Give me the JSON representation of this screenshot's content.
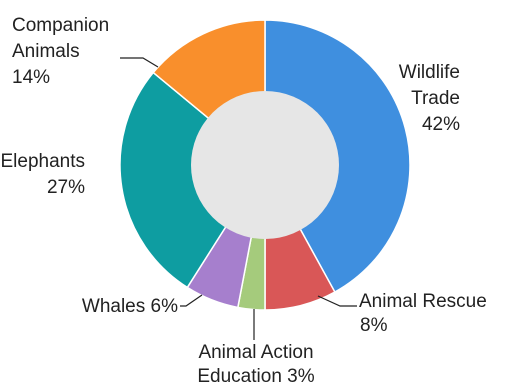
{
  "chart_data": {
    "type": "pie",
    "style": "donut",
    "title": "",
    "slices": [
      {
        "label_lines": [
          "Wildlife",
          "Trade"
        ],
        "value_text": "42%",
        "value": 42,
        "color": "#3f8fdf"
      },
      {
        "label_lines": [
          "Animal Rescue"
        ],
        "value_text": "8%",
        "value": 8,
        "color": "#d95757"
      },
      {
        "label_lines": [
          "Animal Action",
          "Education"
        ],
        "value_text": "3%",
        "value": 3,
        "color": "#a5cb7c"
      },
      {
        "label_lines": [
          "Whales"
        ],
        "value_text": "6%",
        "value": 6,
        "color": "#a67fcd"
      },
      {
        "label_lines": [
          "Elephants"
        ],
        "value_text": "27%",
        "value": 27,
        "color": "#0e9da1"
      },
      {
        "label_lines": [
          "Companion",
          "Animals"
        ],
        "value_text": "14%",
        "value": 14,
        "color": "#f98f2c"
      }
    ],
    "center_color": "#e6e6e6"
  }
}
